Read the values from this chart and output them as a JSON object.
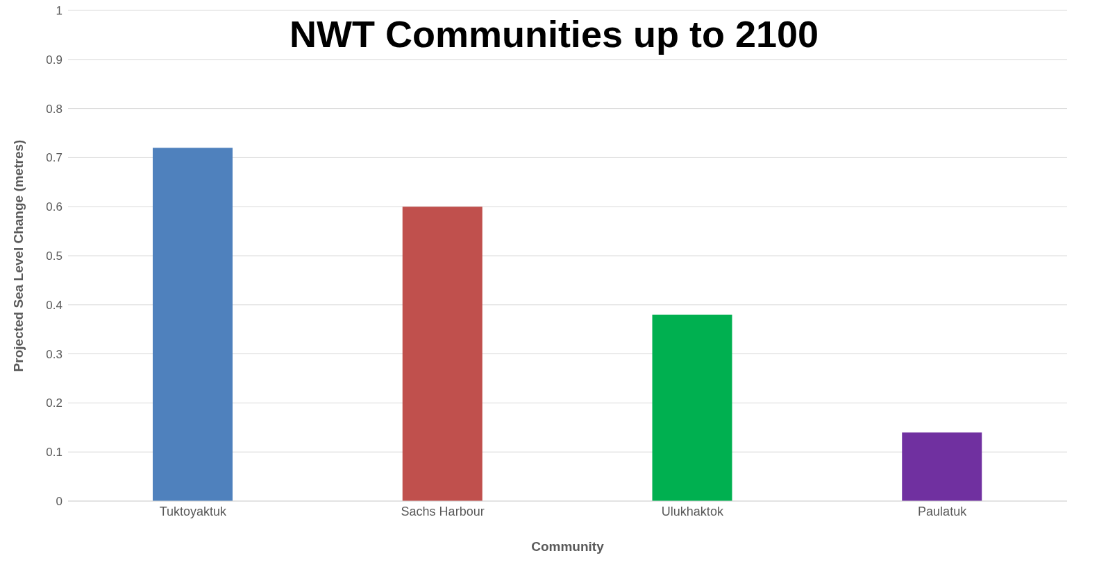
{
  "chart_data": {
    "type": "bar",
    "title": "NWT Communities up to 2100",
    "xlabel": "Community",
    "ylabel": "Projected Sea Level Change (metres)",
    "categories": [
      "Tuktoyaktuk",
      "Sachs Harbour",
      "Ulukhaktok",
      "Paulatuk"
    ],
    "values": [
      0.72,
      0.6,
      0.38,
      0.14
    ],
    "colors": [
      "#4f81bd",
      "#c0504d",
      "#00b050",
      "#7030a0"
    ],
    "ylim": [
      0,
      1
    ],
    "yticks": [
      0,
      0.1,
      0.2,
      0.3,
      0.4,
      0.5,
      0.6,
      0.7,
      0.8,
      0.9,
      1
    ],
    "grid": "y",
    "legend": false
  }
}
